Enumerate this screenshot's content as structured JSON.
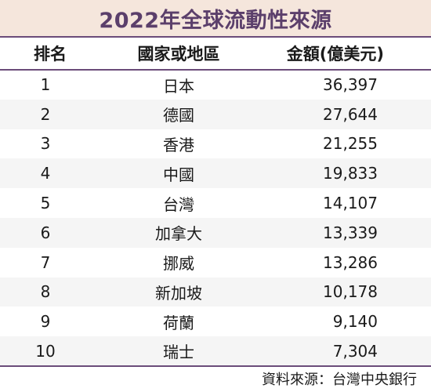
{
  "title": "2022年全球流動性來源",
  "table": {
    "headers": [
      "排名",
      "國家或地區",
      "金額(億美元)"
    ],
    "rows": [
      {
        "rank": "1",
        "country": "日本",
        "amount": "36,397"
      },
      {
        "rank": "2",
        "country": "德國",
        "amount": "27,644"
      },
      {
        "rank": "3",
        "country": "香港",
        "amount": "21,255"
      },
      {
        "rank": "4",
        "country": "中國",
        "amount": "19,833"
      },
      {
        "rank": "5",
        "country": "台灣",
        "amount": "14,107"
      },
      {
        "rank": "6",
        "country": "加拿大",
        "amount": "13,339"
      },
      {
        "rank": "7",
        "country": "挪威",
        "amount": "13,286"
      },
      {
        "rank": "8",
        "country": "新加坡",
        "amount": "10,178"
      },
      {
        "rank": "9",
        "country": "荷蘭",
        "amount": "9,140"
      },
      {
        "rank": "10",
        "country": "瑞士",
        "amount": "7,304"
      }
    ]
  },
  "source": "資料來源：台灣中央銀行"
}
